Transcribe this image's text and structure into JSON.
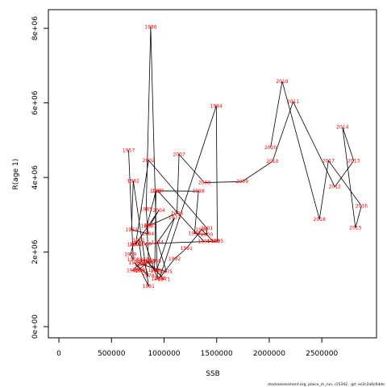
{
  "chart_data": {
    "type": "line",
    "xlabel": "SSB",
    "ylabel": "R(age 1)",
    "xlim": [
      -100000,
      3020000
    ],
    "ylim": [
      -300000,
      8500000
    ],
    "x_ticks": [
      {
        "value": 0,
        "label": "0"
      },
      {
        "value": 500000,
        "label": "500000"
      },
      {
        "value": 1000000,
        "label": "1000000"
      },
      {
        "value": 1500000,
        "label": "1500000"
      },
      {
        "value": 2000000,
        "label": "2000000"
      },
      {
        "value": 2500000,
        "label": "2500000"
      }
    ],
    "y_ticks": [
      {
        "value": 0,
        "label": "0e+00"
      },
      {
        "value": 2000000,
        "label": "2e+06"
      },
      {
        "value": 4000000,
        "label": "4e+06"
      },
      {
        "value": 6000000,
        "label": "6e+06"
      },
      {
        "value": 8000000,
        "label": "8e+06"
      }
    ],
    "line_color": "#000000",
    "label_color": "#ff0000",
    "points": [
      {
        "year": "1957",
        "x": 663000,
        "y": 4730000
      },
      {
        "year": "1958",
        "x": 707000,
        "y": 1800000
      },
      {
        "year": "1959",
        "x": 680000,
        "y": 1940000
      },
      {
        "year": "1960",
        "x": 707000,
        "y": 2200000
      },
      {
        "year": "1961",
        "x": 760000,
        "y": 2320000
      },
      {
        "year": "1962",
        "x": 787000,
        "y": 1750000
      },
      {
        "year": "1963",
        "x": 702000,
        "y": 1510000
      },
      {
        "year": "1964",
        "x": 757000,
        "y": 1530000
      },
      {
        "year": "1965",
        "x": 853000,
        "y": 1730000
      },
      {
        "year": "1966",
        "x": 837000,
        "y": 2700000
      },
      {
        "year": "1967",
        "x": 923000,
        "y": 3640000
      },
      {
        "year": "1968",
        "x": 913000,
        "y": 1770000
      },
      {
        "year": "1969",
        "x": 907000,
        "y": 1520000
      },
      {
        "year": "1970",
        "x": 823000,
        "y": 1800000
      },
      {
        "year": "1971",
        "x": 1000000,
        "y": 1270000
      },
      {
        "year": "1972",
        "x": 927000,
        "y": 1500000
      },
      {
        "year": "1973",
        "x": 1100000,
        "y": 2920000
      },
      {
        "year": "1974",
        "x": 937000,
        "y": 2260000
      },
      {
        "year": "1975",
        "x": 1023000,
        "y": 1470000
      },
      {
        "year": "1976",
        "x": 773000,
        "y": 1680000
      },
      {
        "year": "1977",
        "x": 817000,
        "y": 1670000
      },
      {
        "year": "1978",
        "x": 850000,
        "y": 1360000
      },
      {
        "year": "1979",
        "x": 720000,
        "y": 1710000
      },
      {
        "year": "1980",
        "x": 780000,
        "y": 1500000
      },
      {
        "year": "1981",
        "x": 853000,
        "y": 1080000
      },
      {
        "year": "1982",
        "x": 707000,
        "y": 3910000
      },
      {
        "year": "1983",
        "x": 690000,
        "y": 2600000
      },
      {
        "year": "1984",
        "x": 847000,
        "y": 2490000
      },
      {
        "year": "1985",
        "x": 830000,
        "y": 3150000
      },
      {
        "year": "1986",
        "x": 873000,
        "y": 8030000
      },
      {
        "year": "1987",
        "x": 937000,
        "y": 1280000
      },
      {
        "year": "1988",
        "x": 823000,
        "y": 2220000
      },
      {
        "year": "1989",
        "x": 1467000,
        "y": 2290000
      },
      {
        "year": "1990",
        "x": 1357000,
        "y": 2600000
      },
      {
        "year": "1991",
        "x": 1213000,
        "y": 2100000
      },
      {
        "year": "1992",
        "x": 1100000,
        "y": 1820000
      },
      {
        "year": "1993",
        "x": 957000,
        "y": 1300000
      },
      {
        "year": "1994",
        "x": 1497000,
        "y": 5920000
      },
      {
        "year": "1995",
        "x": 1507000,
        "y": 2290000
      },
      {
        "year": "1996",
        "x": 1380000,
        "y": 2280000
      },
      {
        "year": "1997",
        "x": 940000,
        "y": 3640000
      },
      {
        "year": "1998",
        "x": 1327000,
        "y": 3630000
      },
      {
        "year": "1999",
        "x": 1290000,
        "y": 2500000
      },
      {
        "year": "2000",
        "x": 1407000,
        "y": 2470000
      },
      {
        "year": "2001",
        "x": 1407000,
        "y": 2640000
      },
      {
        "year": "2002",
        "x": 853000,
        "y": 4460000
      },
      {
        "year": "2003",
        "x": 730000,
        "y": 2210000
      },
      {
        "year": "2004",
        "x": 950000,
        "y": 3120000
      },
      {
        "year": "2005",
        "x": 867000,
        "y": 2720000
      },
      {
        "year": "2006",
        "x": 1123000,
        "y": 3040000
      },
      {
        "year": "2007",
        "x": 1143000,
        "y": 4620000
      },
      {
        "year": "2008",
        "x": 1383000,
        "y": 3860000
      },
      {
        "year": "2009",
        "x": 1743000,
        "y": 3890000
      },
      {
        "year": "2010",
        "x": 2030000,
        "y": 4430000
      },
      {
        "year": "2011",
        "x": 2227000,
        "y": 6030000
      },
      {
        "year": "2012",
        "x": 2623000,
        "y": 3750000
      },
      {
        "year": "2013",
        "x": 2803000,
        "y": 4450000
      },
      {
        "year": "2014",
        "x": 2697000,
        "y": 5350000
      },
      {
        "year": "2015",
        "x": 2820000,
        "y": 2650000
      },
      {
        "year": "2016",
        "x": 2877000,
        "y": 3240000
      },
      {
        "year": "2017",
        "x": 2563000,
        "y": 4450000
      },
      {
        "year": "2018",
        "x": 2477000,
        "y": 2880000
      },
      {
        "year": "2019",
        "x": 2123000,
        "y": 6580000
      },
      {
        "year": "2020",
        "x": 2013000,
        "y": 4800000
      }
    ]
  },
  "footer": {
    "text": "stockassessment.org,  plaice_m_run,  r15342 ,  git:  ec2c2a0c6dde"
  }
}
